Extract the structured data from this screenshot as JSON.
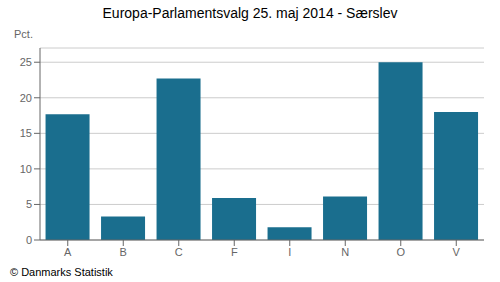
{
  "chart_data": {
    "type": "bar",
    "title": "Europa-Parlamentsvalg 25. maj 2014 - Særslev",
    "categories": [
      "A",
      "B",
      "C",
      "F",
      "I",
      "N",
      "O",
      "V"
    ],
    "values": [
      17.7,
      3.3,
      22.7,
      5.9,
      1.8,
      6.1,
      25.0,
      18.0
    ],
    "color": "#1a6e8e",
    "ylabel": "Pct.",
    "ylim": [
      0,
      27
    ],
    "yticks": [
      0,
      5,
      10,
      15,
      20,
      25
    ],
    "grid": true,
    "annotations": [
      "© Danmarks Statistik"
    ]
  }
}
